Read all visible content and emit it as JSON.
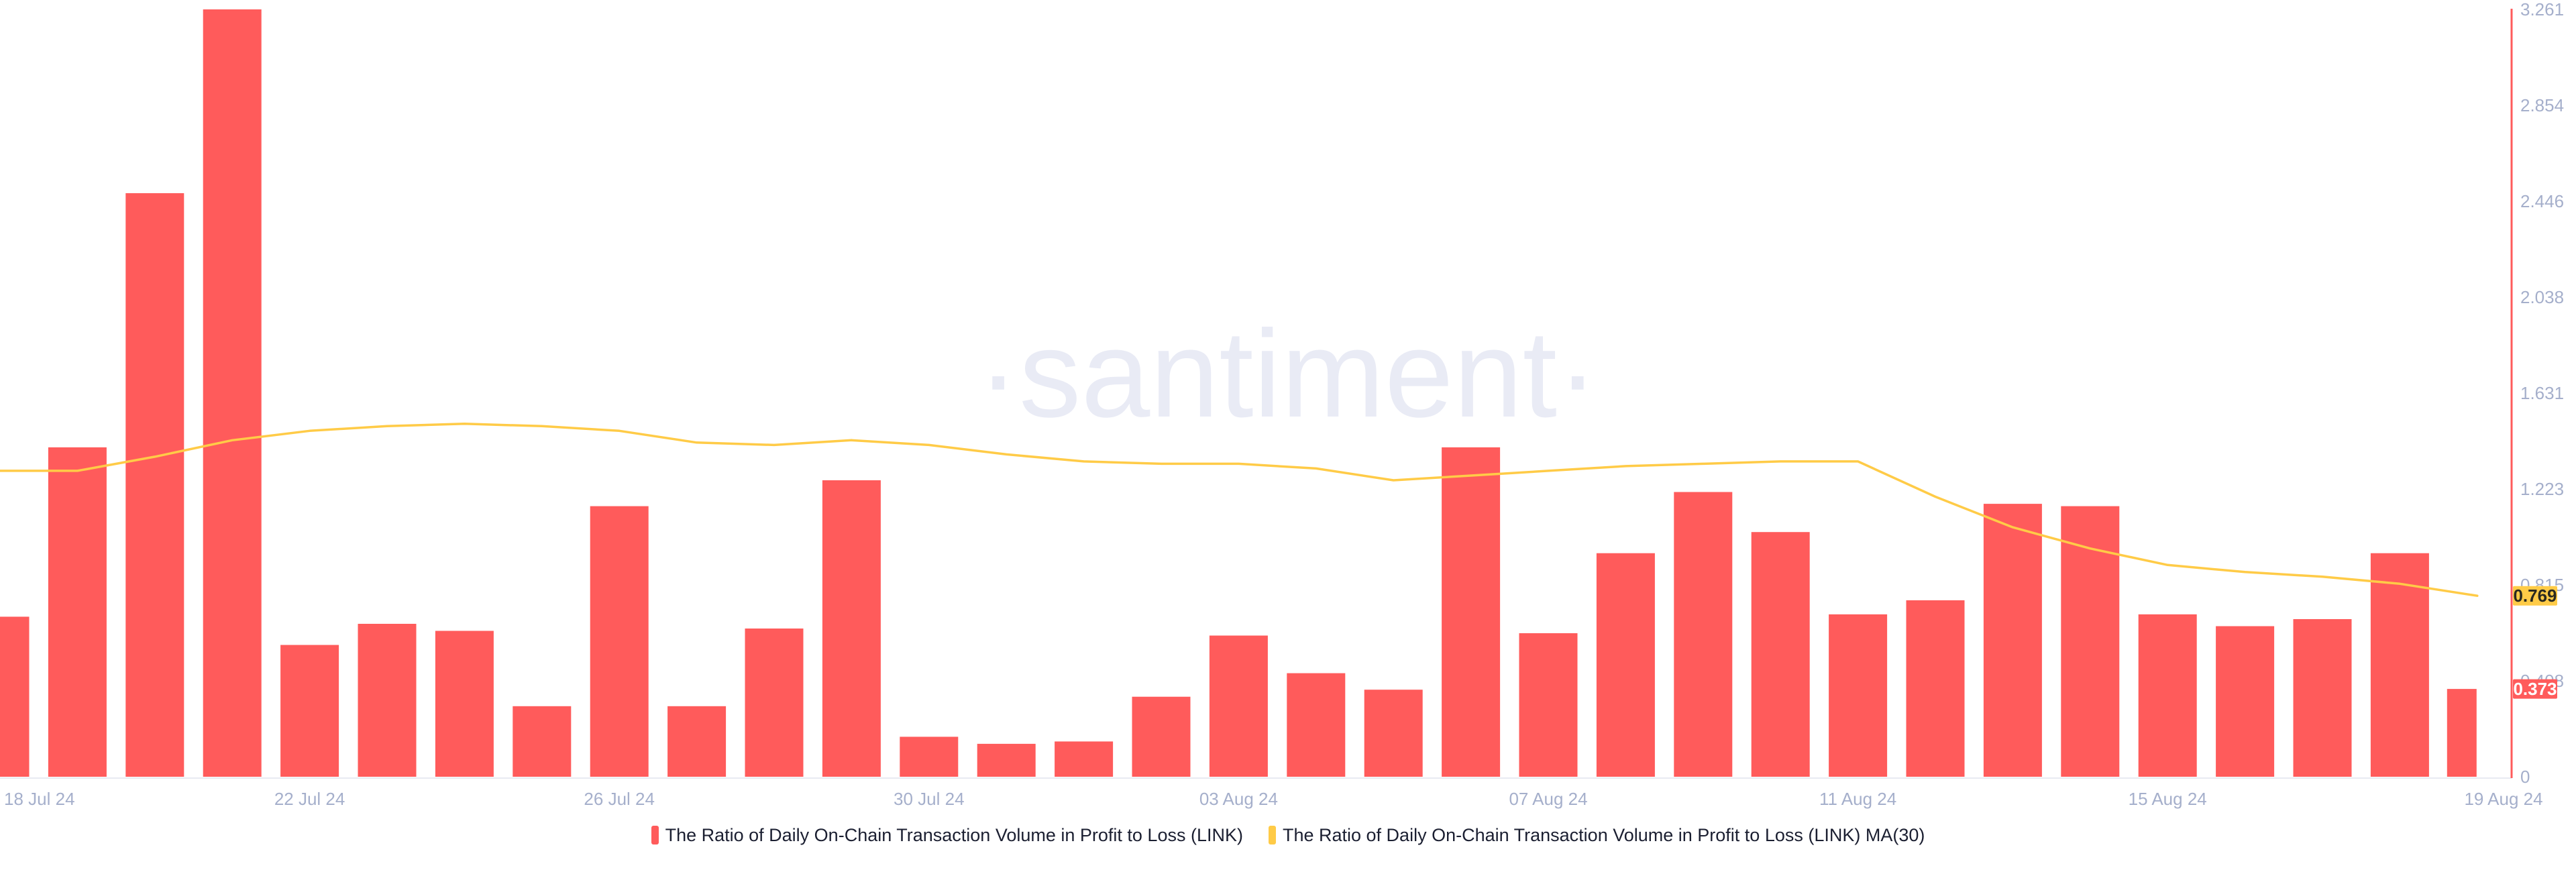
{
  "watermark": "·santiment·",
  "colors": {
    "bar": "#FF5B5B",
    "ma_line": "#FFCB47",
    "axis_label": "#A5AFCB",
    "x_axis_line": "#E8EAF2",
    "y_axis_line": "#FF5B5B",
    "badge_ma_bg": "#FFCB47",
    "badge_ma_text": "#2A2A20",
    "badge_bar_bg": "#FF5B5B",
    "badge_bar_text": "#FFFFFF",
    "legend_text": "#1B1F31",
    "watermark_color": "#E9EBF5"
  },
  "y_axis": {
    "tick_labels": [
      "0",
      "0.408",
      "0.815",
      "1.223",
      "1.631",
      "2.038",
      "2.446",
      "2.854",
      "3.261"
    ],
    "tick_values": [
      0,
      0.408,
      0.815,
      1.223,
      1.631,
      2.038,
      2.446,
      2.854,
      3.261
    ],
    "badge_ma": "0.769",
    "badge_bar": "0.373"
  },
  "x_axis": {
    "tick_indices": [
      0,
      4,
      8,
      12,
      16,
      20,
      24,
      28,
      32
    ],
    "tick_labels": [
      "18 Jul 24",
      "22 Jul 24",
      "26 Jul 24",
      "30 Jul 24",
      "03 Aug 24",
      "07 Aug 24",
      "11 Aug 24",
      "15 Aug 24",
      "19 Aug 24"
    ]
  },
  "legend": {
    "items": [
      {
        "label": "The Ratio of Daily On-Chain Transaction Volume in Profit to Loss (LINK)",
        "color": "#FF5B5B"
      },
      {
        "label": "The Ratio of Daily On-Chain Transaction Volume in Profit to Loss (LINK) MA(30)",
        "color": "#FFCB47"
      }
    ]
  },
  "chart_data": {
    "type": "bar",
    "title": "",
    "xlabel": "",
    "ylabel": "",
    "ylim": [
      0,
      3.261
    ],
    "grid": false,
    "legend_position": "bottom-center",
    "categories": [
      "18 Jul 24",
      "19 Jul 24",
      "20 Jul 24",
      "21 Jul 24",
      "22 Jul 24",
      "23 Jul 24",
      "24 Jul 24",
      "25 Jul 24",
      "26 Jul 24",
      "27 Jul 24",
      "28 Jul 24",
      "29 Jul 24",
      "30 Jul 24",
      "31 Jul 24",
      "01 Aug 24",
      "02 Aug 24",
      "03 Aug 24",
      "04 Aug 24",
      "05 Aug 24",
      "06 Aug 24",
      "07 Aug 24",
      "08 Aug 24",
      "09 Aug 24",
      "10 Aug 24",
      "11 Aug 24",
      "12 Aug 24",
      "13 Aug 24",
      "14 Aug 24",
      "15 Aug 24",
      "16 Aug 24",
      "17 Aug 24",
      "18 Aug 24",
      "19 Aug 24"
    ],
    "series": [
      {
        "name": "The Ratio of Daily On-Chain Transaction Volume in Profit to Loss (LINK)",
        "type": "bar",
        "color": "#FF5B5B",
        "values": [
          0.68,
          1.4,
          2.48,
          3.261,
          0.56,
          0.65,
          0.62,
          0.3,
          1.15,
          0.3,
          0.63,
          1.26,
          0.17,
          0.14,
          0.15,
          0.34,
          0.6,
          0.44,
          0.37,
          1.4,
          0.61,
          0.95,
          1.21,
          1.04,
          0.69,
          0.75,
          1.16,
          1.15,
          0.69,
          0.64,
          0.67,
          0.95,
          0.373
        ]
      },
      {
        "name": "The Ratio of Daily On-Chain Transaction Volume in Profit to Loss (LINK) MA(30)",
        "type": "line",
        "color": "#FFCB47",
        "values": [
          1.3,
          1.3,
          1.36,
          1.43,
          1.47,
          1.49,
          1.5,
          1.49,
          1.47,
          1.42,
          1.41,
          1.43,
          1.41,
          1.37,
          1.34,
          1.33,
          1.33,
          1.31,
          1.26,
          1.28,
          1.3,
          1.32,
          1.33,
          1.34,
          1.34,
          1.19,
          1.06,
          0.97,
          0.9,
          0.87,
          0.85,
          0.82,
          0.769
        ]
      }
    ],
    "last_values": {
      "bar": 0.373,
      "ma": 0.769
    }
  }
}
